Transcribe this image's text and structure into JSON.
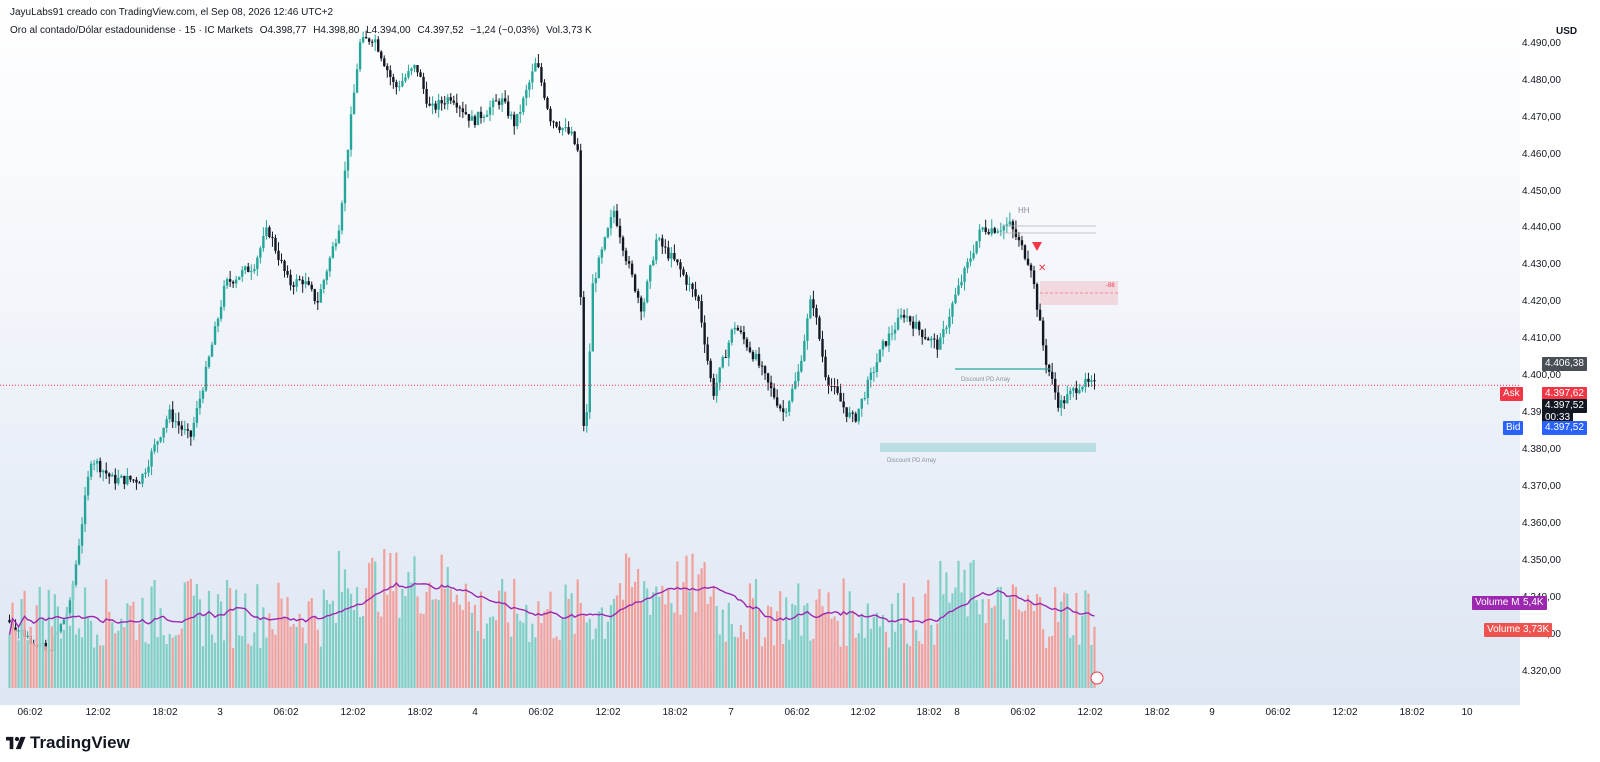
{
  "header": {
    "attribution": "JayuLabs91 creado con TradingView.com, el Sep 08, 2026 12:46 UTC+2"
  },
  "symbol": {
    "name": "Oro al contado/Dólar estadounidense · 15 · IC Markets",
    "open": "O4.398,77",
    "high": "H4.398,80",
    "low": "L4.394,00",
    "close": "C4.397,52",
    "change": "−1,24 (−0,03%)",
    "volume": "Vol.3,73 K"
  },
  "price_axis": {
    "currency": "USD",
    "labels": [
      "4.490,00",
      "4.480,00",
      "4.470,00",
      "4.460,00",
      "4.450,00",
      "4.440,00",
      "4.430,00",
      "4.420,00",
      "4.410,00",
      "4.400,00",
      "4.390,00",
      "4.380,00",
      "4.370,00",
      "4.360,00",
      "4.350,00",
      "4.340,00",
      "4.330,00",
      "4.320,00"
    ],
    "marker_price": "4.406,38",
    "ask_label": "Ask",
    "ask_price": "4.397,62",
    "last_price": "4.397,52",
    "countdown": "00:33",
    "bid_label": "Bid",
    "bid_price": "4.397,52"
  },
  "volume_tags": {
    "ma_label": "Volume MA",
    "ma_value": "5,4K",
    "vol_label": "Volume",
    "vol_value": "3,73K"
  },
  "annotations": {
    "hh": "HH",
    "discount_1": "Discount PD Array",
    "discount_2": "Discount PD Array",
    "zone_value": "-88"
  },
  "time_axis": {
    "labels": [
      "06:02",
      "12:02",
      "18:02",
      "3",
      "06:02",
      "12:02",
      "18:02",
      "4",
      "06:02",
      "12:02",
      "18:02",
      "7",
      "06:02",
      "12:02",
      "18:02",
      "8",
      "06:02",
      "12:02",
      "18:02",
      "9",
      "06:02",
      "12:02",
      "18:02",
      "10"
    ]
  },
  "brand": "TradingView",
  "colors": {
    "up": "#26a69a",
    "down": "#131722",
    "volume_up": "#7fcfc6",
    "volume_down": "#f2a09b",
    "volume_ma": "#9c27b0",
    "ask": "#f23645",
    "bid": "#2962ff"
  },
  "chart_data": {
    "type": "candlestick",
    "symbol": "XAUUSD",
    "interval": "15",
    "y_range": [
      4315,
      4497
    ],
    "price_path": [
      [
        0,
        4334
      ],
      [
        0.06,
        4325
      ],
      [
        0.09,
        4338
      ],
      [
        0.12,
        4378
      ],
      [
        0.15,
        4372
      ],
      [
        0.19,
        4372
      ],
      [
        0.23,
        4390
      ],
      [
        0.26,
        4383
      ],
      [
        0.28,
        4399
      ],
      [
        0.31,
        4425
      ],
      [
        0.35,
        4430
      ],
      [
        0.37,
        4440
      ],
      [
        0.4,
        4425
      ],
      [
        0.42,
        4426
      ],
      [
        0.44,
        4420
      ],
      [
        0.47,
        4440
      ],
      [
        0.5,
        4490
      ],
      [
        0.52,
        4492
      ],
      [
        0.55,
        4478
      ],
      [
        0.58,
        4484
      ],
      [
        0.6,
        4472
      ],
      [
        0.63,
        4476
      ],
      [
        0.66,
        4469
      ],
      [
        0.7,
        4475
      ],
      [
        0.72,
        4468
      ],
      [
        0.75,
        4485
      ],
      [
        0.77,
        4470
      ],
      [
        0.8,
        4465
      ],
      [
        0.81,
        4460
      ],
      [
        0.815,
        4389
      ],
      [
        0.82,
        4384
      ],
      [
        0.83,
        4425
      ],
      [
        0.86,
        4445
      ],
      [
        0.88,
        4430
      ],
      [
        0.9,
        4418
      ],
      [
        0.92,
        4437
      ],
      [
        0.95,
        4430
      ],
      [
        0.98,
        4420
      ],
      [
        1.0,
        4395
      ],
      [
        1.03,
        4414
      ],
      [
        1.06,
        4405
      ],
      [
        1.08,
        4397
      ],
      [
        1.1,
        4390
      ],
      [
        1.12,
        4400
      ],
      [
        1.14,
        4422
      ],
      [
        1.16,
        4400
      ],
      [
        1.19,
        4390
      ],
      [
        1.2,
        4388
      ],
      [
        1.24,
        4408
      ],
      [
        1.27,
        4417
      ],
      [
        1.3,
        4411
      ],
      [
        1.32,
        4408
      ],
      [
        1.34,
        4420
      ],
      [
        1.36,
        4430
      ],
      [
        1.38,
        4440
      ],
      [
        1.4,
        4440
      ],
      [
        1.42,
        4441
      ],
      [
        1.45,
        4430
      ],
      [
        1.47,
        4405
      ],
      [
        1.49,
        4392
      ],
      [
        1.52,
        4398
      ],
      [
        1.54,
        4397.5
      ]
    ],
    "volume_ma_range": [
      "3,0K",
      "8,5K"
    ],
    "current_price": 4397.52,
    "ask": 4397.62,
    "bid": 4397.52,
    "marked_price": 4406.38
  }
}
